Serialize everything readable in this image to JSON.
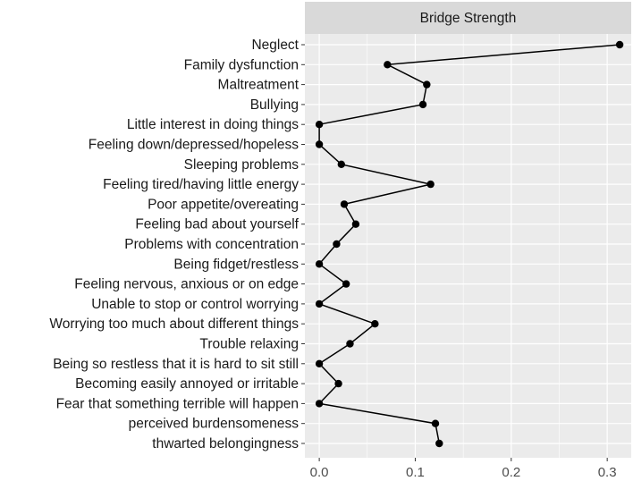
{
  "chart_data": {
    "type": "line",
    "orientation": "horizontal",
    "title": "",
    "facet_label": "Bridge Strength",
    "xlabel": "",
    "ylabel": "",
    "xlim": [
      -0.015,
      0.325
    ],
    "x_ticks": [
      0.0,
      0.1,
      0.2,
      0.3
    ],
    "x_tick_labels": [
      "0.0",
      "0.1",
      "0.2",
      "0.3"
    ],
    "grid": true,
    "legend": "none",
    "colors": {
      "panel": "#ebebeb",
      "strip": "#d9d9d9",
      "grid": "#ffffff",
      "marks": "#000000"
    },
    "categories": [
      "Neglect",
      "Family dysfunction",
      "Maltreatment",
      "Bullying",
      "Little interest in doing things",
      "Feeling down/depressed/hopeless",
      "Sleeping problems",
      "Feeling tired/having little energy",
      "Poor appetite/overeating",
      "Feeling bad about yourself",
      "Problems with concentration",
      "Being fidget/restless",
      "Feeling nervous, anxious or on edge",
      "Unable to stop or control worrying",
      "Worrying too much about different things",
      "Trouble relaxing",
      "Being so restless that it is hard to sit still",
      "Becoming easily annoyed or irritable",
      "Fear that something terrible will happen",
      "perceived burdensomeness",
      "thwarted belongingness"
    ],
    "values": [
      0.313,
      0.071,
      0.112,
      0.108,
      0.0,
      0.0,
      0.023,
      0.116,
      0.026,
      0.038,
      0.018,
      0.0,
      0.028,
      0.0,
      0.058,
      0.032,
      0.0,
      0.02,
      0.0,
      0.121,
      0.125
    ]
  }
}
